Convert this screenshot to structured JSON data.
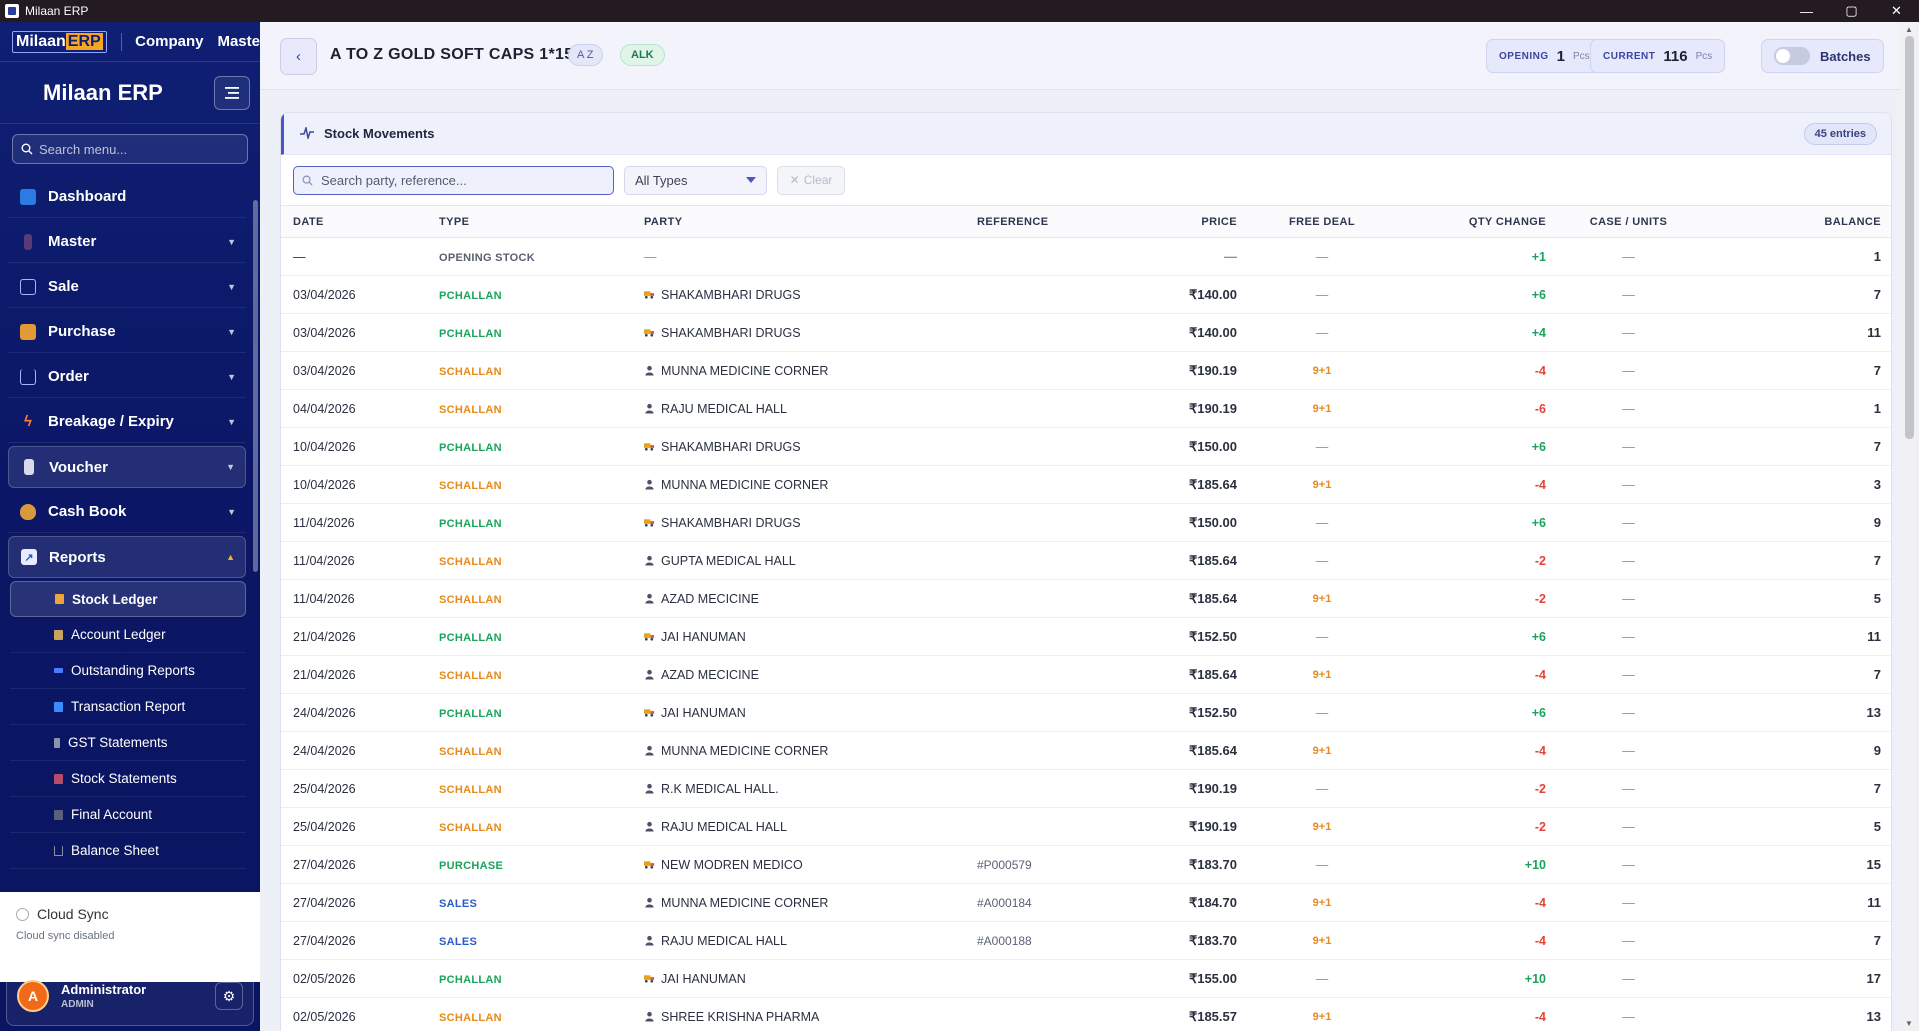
{
  "window": {
    "title": "Milaan ERP",
    "minimize": "—",
    "maximize": "▢",
    "close": "✕"
  },
  "topnav": {
    "logo_a": "Milaan",
    "logo_b": "ERP",
    "items": [
      "Company",
      "Maste"
    ]
  },
  "sidebar": {
    "brand": "Milaan ERP",
    "search_placeholder": "Search menu...",
    "items": [
      {
        "label": "Dashboard",
        "icon": "dashboard-icon",
        "color": "#4aa0ff"
      },
      {
        "label": "Master",
        "icon": "master-icon",
        "color": "#ff6e7a"
      },
      {
        "label": "Sale",
        "icon": "sale-icon",
        "color": "#a9b6ff"
      },
      {
        "label": "Purchase",
        "icon": "box-icon",
        "color": "#f0a43a"
      },
      {
        "label": "Order",
        "icon": "cart-icon",
        "color": "#a9b6ff"
      },
      {
        "label": "Breakage / Expiry",
        "icon": "bolt-icon",
        "color": "#ff7a3a"
      },
      {
        "label": "Voucher",
        "icon": "receipt-icon",
        "color": "#d7dbe8"
      },
      {
        "label": "Cash Book",
        "icon": "moneybag-icon",
        "color": "#e0a84a"
      },
      {
        "label": "Reports",
        "icon": "chart-icon",
        "color": "#9fb0ff"
      }
    ],
    "subitems": [
      {
        "label": "Stock Ledger",
        "color": "#f0a43a"
      },
      {
        "label": "Account Ledger",
        "color": "#c9a45a"
      },
      {
        "label": "Outstanding Reports",
        "color": "#4a7cff"
      },
      {
        "label": "Transaction Report",
        "color": "#3a8cff"
      },
      {
        "label": "GST Statements",
        "color": "#8c92a8"
      },
      {
        "label": "Stock Statements",
        "color": "#b84a6a"
      },
      {
        "label": "Final Account",
        "color": "#5a6078"
      },
      {
        "label": "Balance Sheet",
        "color": "#8c92a8"
      }
    ],
    "cloud_sync": "Cloud Sync",
    "cloud_status": "Cloud sync disabled",
    "user_initial": "A",
    "user_name": "Administrator",
    "user_role": "ADMIN"
  },
  "header": {
    "product": "A TO Z GOLD SOFT CAPS 1*15",
    "badge_sort": "A Z",
    "badge_company": "ALK",
    "opening_label": "OPENING",
    "opening_value": "1",
    "opening_unit": "Pcs",
    "current_label": "CURRENT",
    "current_value": "116",
    "current_unit": "Pcs",
    "batches_label": "Batches"
  },
  "movements": {
    "title": "Stock Movements",
    "entries": "45 entries",
    "search_placeholder": "Search party, reference...",
    "type_filter": "All Types",
    "clear": "Clear",
    "columns": [
      "DATE",
      "TYPE",
      "PARTY",
      "REFERENCE",
      "PRICE",
      "FREE DEAL",
      "QTY CHANGE",
      "CASE / UNITS",
      "BALANCE"
    ],
    "rows": [
      {
        "date": "—",
        "type": "OPENING STOCK",
        "tclass": "t-opening",
        "party": "—",
        "pkind": "none",
        "ref": "",
        "price": "—",
        "free": "—",
        "qty": "+1",
        "case": "—",
        "balance": "1"
      },
      {
        "date": "03/04/2026",
        "type": "PCHALLAN",
        "tclass": "t-pchallan",
        "party": "SHAKAMBHARI DRUGS",
        "pkind": "supplier",
        "ref": "",
        "price": "₹140.00",
        "free": "—",
        "qty": "+6",
        "case": "—",
        "balance": "7"
      },
      {
        "date": "03/04/2026",
        "type": "PCHALLAN",
        "tclass": "t-pchallan",
        "party": "SHAKAMBHARI DRUGS",
        "pkind": "supplier",
        "ref": "",
        "price": "₹140.00",
        "free": "—",
        "qty": "+4",
        "case": "—",
        "balance": "11"
      },
      {
        "date": "03/04/2026",
        "type": "SCHALLAN",
        "tclass": "t-schallan",
        "party": "MUNNA MEDICINE CORNER",
        "pkind": "customer",
        "ref": "",
        "price": "₹190.19",
        "free": "9+1",
        "qty": "-4",
        "case": "—",
        "balance": "7"
      },
      {
        "date": "04/04/2026",
        "type": "SCHALLAN",
        "tclass": "t-schallan",
        "party": "RAJU MEDICAL HALL",
        "pkind": "customer",
        "ref": "",
        "price": "₹190.19",
        "free": "9+1",
        "qty": "-6",
        "case": "—",
        "balance": "1"
      },
      {
        "date": "10/04/2026",
        "type": "PCHALLAN",
        "tclass": "t-pchallan",
        "party": "SHAKAMBHARI DRUGS",
        "pkind": "supplier",
        "ref": "",
        "price": "₹150.00",
        "free": "—",
        "qty": "+6",
        "case": "—",
        "balance": "7"
      },
      {
        "date": "10/04/2026",
        "type": "SCHALLAN",
        "tclass": "t-schallan",
        "party": "MUNNA MEDICINE CORNER",
        "pkind": "customer",
        "ref": "",
        "price": "₹185.64",
        "free": "9+1",
        "qty": "-4",
        "case": "—",
        "balance": "3"
      },
      {
        "date": "11/04/2026",
        "type": "PCHALLAN",
        "tclass": "t-pchallan",
        "party": "SHAKAMBHARI DRUGS",
        "pkind": "supplier",
        "ref": "",
        "price": "₹150.00",
        "free": "—",
        "qty": "+6",
        "case": "—",
        "balance": "9"
      },
      {
        "date": "11/04/2026",
        "type": "SCHALLAN",
        "tclass": "t-schallan",
        "party": "GUPTA MEDICAL HALL",
        "pkind": "customer",
        "ref": "",
        "price": "₹185.64",
        "free": "—",
        "qty": "-2",
        "case": "—",
        "balance": "7"
      },
      {
        "date": "11/04/2026",
        "type": "SCHALLAN",
        "tclass": "t-schallan",
        "party": "AZAD MECICINE",
        "pkind": "customer",
        "ref": "",
        "price": "₹185.64",
        "free": "9+1",
        "qty": "-2",
        "case": "—",
        "balance": "5"
      },
      {
        "date": "21/04/2026",
        "type": "PCHALLAN",
        "tclass": "t-pchallan",
        "party": "JAI HANUMAN",
        "pkind": "supplier",
        "ref": "",
        "price": "₹152.50",
        "free": "—",
        "qty": "+6",
        "case": "—",
        "balance": "11"
      },
      {
        "date": "21/04/2026",
        "type": "SCHALLAN",
        "tclass": "t-schallan",
        "party": "AZAD MECICINE",
        "pkind": "customer",
        "ref": "",
        "price": "₹185.64",
        "free": "9+1",
        "qty": "-4",
        "case": "—",
        "balance": "7"
      },
      {
        "date": "24/04/2026",
        "type": "PCHALLAN",
        "tclass": "t-pchallan",
        "party": "JAI HANUMAN",
        "pkind": "supplier",
        "ref": "",
        "price": "₹152.50",
        "free": "—",
        "qty": "+6",
        "case": "—",
        "balance": "13"
      },
      {
        "date": "24/04/2026",
        "type": "SCHALLAN",
        "tclass": "t-schallan",
        "party": "MUNNA MEDICINE CORNER",
        "pkind": "customer",
        "ref": "",
        "price": "₹185.64",
        "free": "9+1",
        "qty": "-4",
        "case": "—",
        "balance": "9"
      },
      {
        "date": "25/04/2026",
        "type": "SCHALLAN",
        "tclass": "t-schallan",
        "party": "R.K MEDICAL HALL.",
        "pkind": "customer",
        "ref": "",
        "price": "₹190.19",
        "free": "—",
        "qty": "-2",
        "case": "—",
        "balance": "7"
      },
      {
        "date": "25/04/2026",
        "type": "SCHALLAN",
        "tclass": "t-schallan",
        "party": "RAJU MEDICAL HALL",
        "pkind": "customer",
        "ref": "",
        "price": "₹190.19",
        "free": "9+1",
        "qty": "-2",
        "case": "—",
        "balance": "5"
      },
      {
        "date": "27/04/2026",
        "type": "PURCHASE",
        "tclass": "t-purchase",
        "party": "NEW MODREN MEDICO",
        "pkind": "supplier",
        "ref": "#P000579",
        "price": "₹183.70",
        "free": "—",
        "qty": "+10",
        "case": "—",
        "balance": "15"
      },
      {
        "date": "27/04/2026",
        "type": "SALES",
        "tclass": "t-sales",
        "party": "MUNNA MEDICINE CORNER",
        "pkind": "customer",
        "ref": "#A000184",
        "price": "₹184.70",
        "free": "9+1",
        "qty": "-4",
        "case": "—",
        "balance": "11"
      },
      {
        "date": "27/04/2026",
        "type": "SALES",
        "tclass": "t-sales",
        "party": "RAJU MEDICAL HALL",
        "pkind": "customer",
        "ref": "#A000188",
        "price": "₹183.70",
        "free": "9+1",
        "qty": "-4",
        "case": "—",
        "balance": "7"
      },
      {
        "date": "02/05/2026",
        "type": "PCHALLAN",
        "tclass": "t-pchallan",
        "party": "JAI HANUMAN",
        "pkind": "supplier",
        "ref": "",
        "price": "₹155.00",
        "free": "—",
        "qty": "+10",
        "case": "—",
        "balance": "17"
      },
      {
        "date": "02/05/2026",
        "type": "SCHALLAN",
        "tclass": "t-schallan",
        "party": "SHREE KRISHNA PHARMA",
        "pkind": "customer",
        "ref": "",
        "price": "₹185.57",
        "free": "9+1",
        "qty": "-4",
        "case": "—",
        "balance": "13"
      }
    ]
  }
}
